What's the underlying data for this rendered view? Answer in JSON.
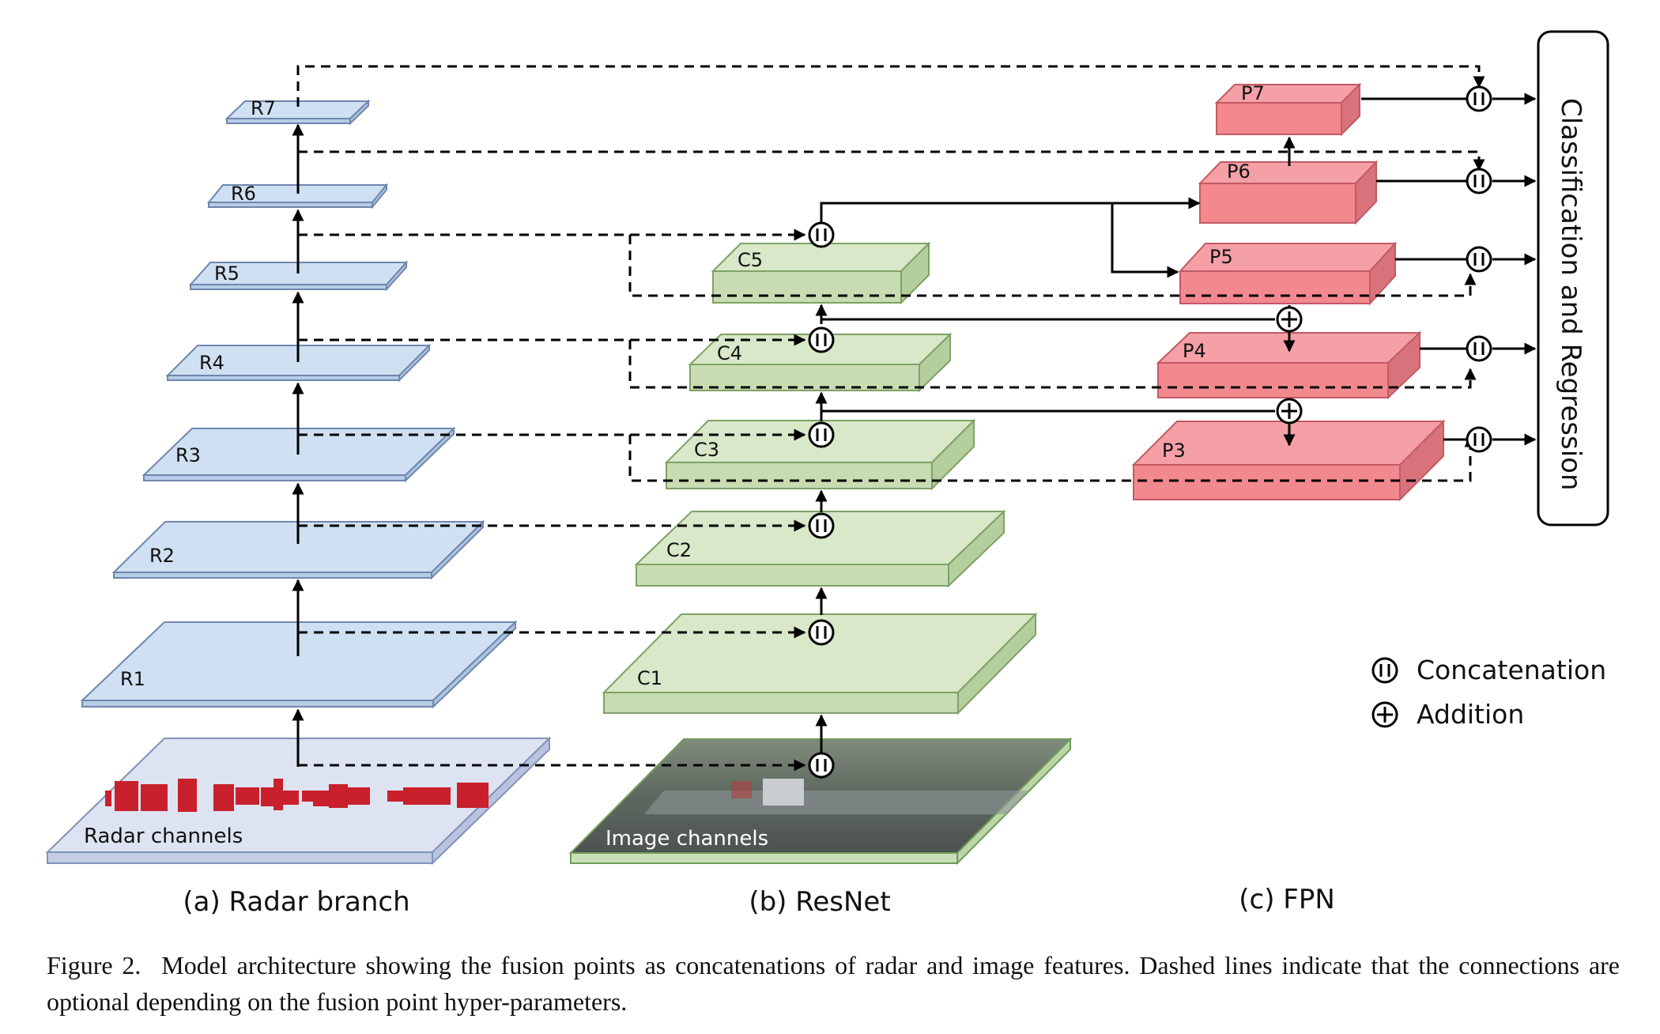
{
  "radar_layers": [
    "R7",
    "R6",
    "R5",
    "R4",
    "R3",
    "R2",
    "R1"
  ],
  "resnet_layers": [
    "C5",
    "C4",
    "C3",
    "C2",
    "C1"
  ],
  "fpn_layers": [
    "P7",
    "P6",
    "P5",
    "P4",
    "P3"
  ],
  "inputs": {
    "radar": "Radar channels",
    "image": "Image channels"
  },
  "sections": {
    "radar": "(a) Radar branch",
    "resnet": "(b) ResNet",
    "fpn": "(c) FPN"
  },
  "head": "Classification and Regression",
  "legend": {
    "concat": "Concatenation",
    "add": "Addition"
  },
  "caption": {
    "label": "Figure 2.",
    "text": "Model architecture showing the fusion points as concatenations of radar and image features. Dashed lines indicate that the connections are optional depending on the fusion point hyper-parameters."
  },
  "colors": {
    "radar": "#cfe0f2",
    "resnet": "#d8e8c8",
    "fpn": "#f4a0a6",
    "input_radar": "#dde3f1"
  }
}
